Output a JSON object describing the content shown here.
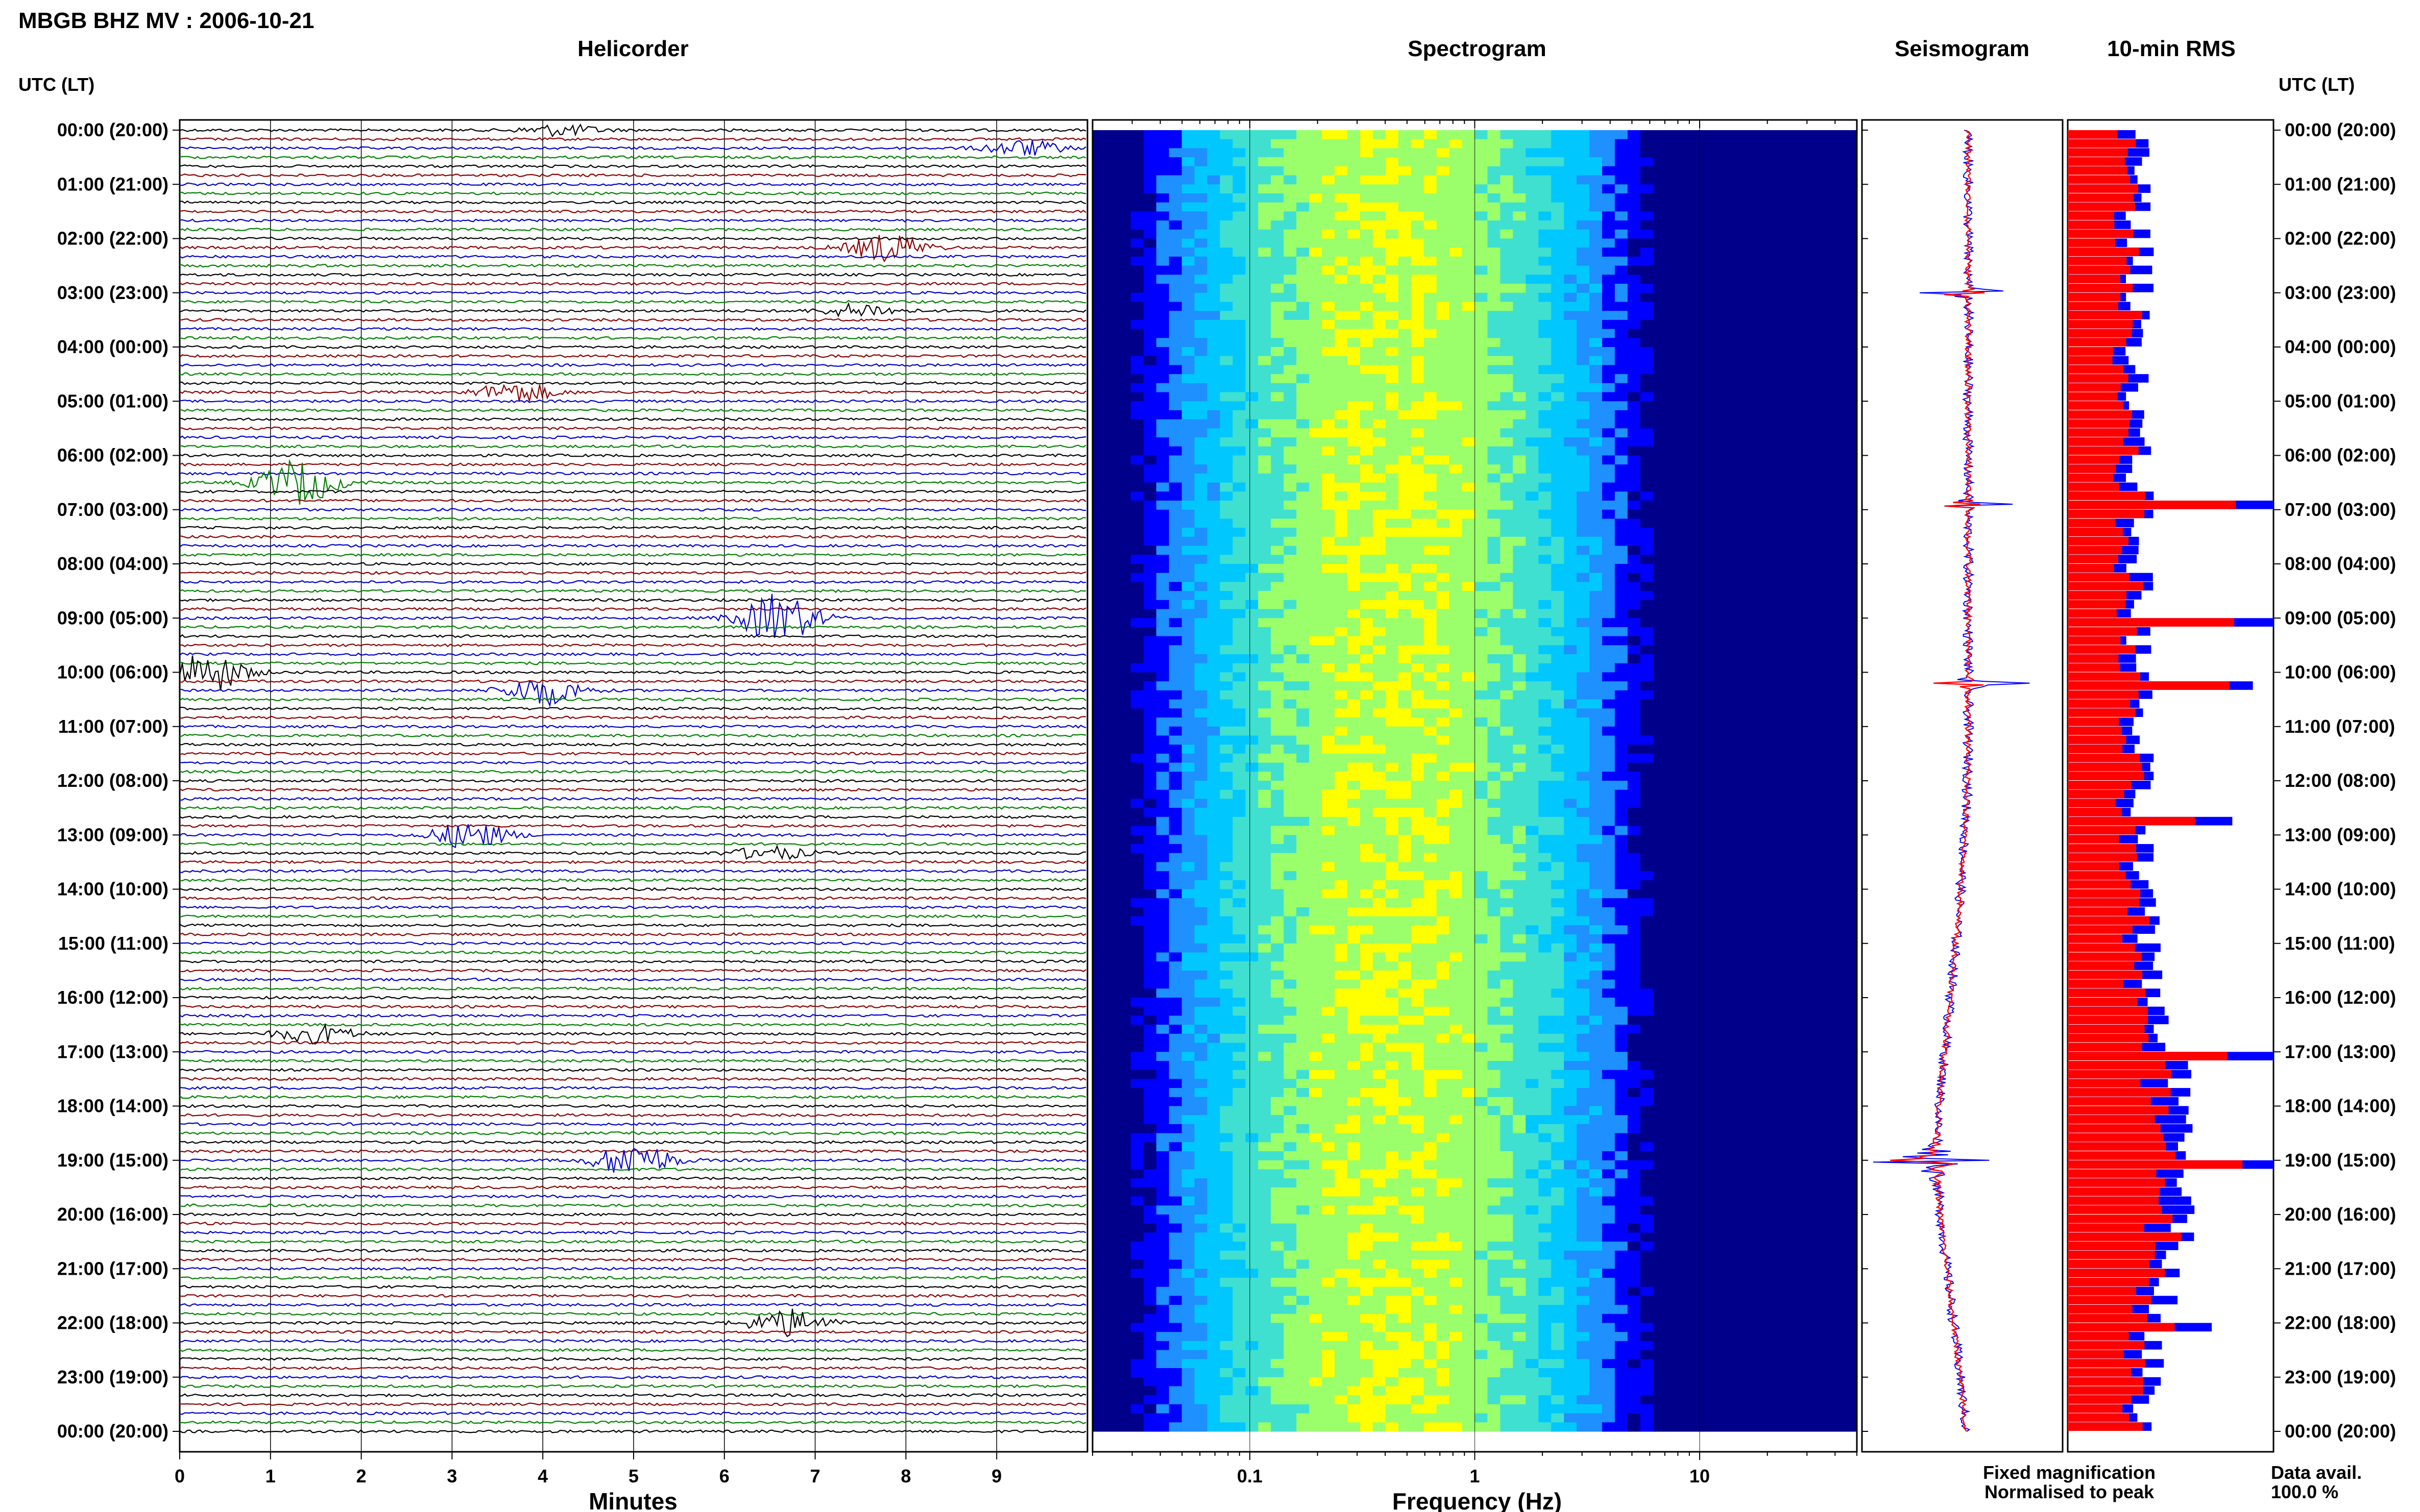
{
  "figure": {
    "title": "MBGB BHZ MV : 2006-10-21",
    "panel_titles": {
      "helicorder": "Helicorder",
      "spectrogram": "Spectrogram",
      "seismogram": "Seismogram",
      "rms": "10-min RMS"
    },
    "time_axis_label": "UTC (LT)",
    "time_axis_label_right": "UTC (LT)",
    "legend": {
      "fixed": "Fixed magnification",
      "normalised": "Normalised to peak",
      "fixed_color": "#0000ff",
      "normalised_color": "#ff0000"
    },
    "data_avail_label": "Data avail.",
    "data_avail_value": "100.0 %"
  },
  "chart_data": [
    {
      "type": "line",
      "panel": "helicorder",
      "xlabel": "Minutes",
      "ylabel": "UTC (LT)",
      "xlim": [
        0,
        10
      ],
      "x_ticks": [
        "0",
        "1",
        "2",
        "3",
        "4",
        "5",
        "6",
        "7",
        "8",
        "9"
      ],
      "time_ticks": [
        "00:00 (20:00)",
        "01:00 (21:00)",
        "02:00 (22:00)",
        "03:00 (23:00)",
        "04:00 (00:00)",
        "05:00 (01:00)",
        "06:00 (02:00)",
        "07:00 (03:00)",
        "08:00 (04:00)",
        "09:00 (05:00)",
        "10:00 (06:00)",
        "11:00 (07:00)",
        "12:00 (08:00)",
        "13:00 (09:00)",
        "14:00 (10:00)",
        "15:00 (11:00)",
        "16:00 (12:00)",
        "17:00 (13:00)",
        "18:00 (14:00)",
        "19:00 (15:00)",
        "20:00 (16:00)",
        "21:00 (17:00)",
        "22:00 (18:00)",
        "23:00 (19:00)",
        "00:00 (20:00)"
      ],
      "trace_colors": [
        "#000000",
        "#8b0000",
        "#0000cd",
        "#008000"
      ],
      "events": [
        {
          "utc_hours": 0.0,
          "minute": 4.2,
          "amplitude": 0.5
        },
        {
          "utc_hours": 0.33,
          "minute": 9.3,
          "amplitude": 0.7
        },
        {
          "utc_hours": 2.17,
          "minute": 7.8,
          "amplitude": 1.2
        },
        {
          "utc_hours": 3.33,
          "minute": 7.5,
          "amplitude": 0.6
        },
        {
          "utc_hours": 4.83,
          "minute": 3.7,
          "amplitude": 0.9
        },
        {
          "utc_hours": 6.5,
          "minute": 1.3,
          "amplitude": 2.0
        },
        {
          "utc_hours": 9.0,
          "minute": 6.6,
          "amplitude": 2.2
        },
        {
          "utc_hours": 10.0,
          "minute": 0.3,
          "amplitude": 1.8
        },
        {
          "utc_hours": 10.33,
          "minute": 4.0,
          "amplitude": 1.3
        },
        {
          "utc_hours": 13.0,
          "minute": 3.2,
          "amplitude": 1.2
        },
        {
          "utc_hours": 13.33,
          "minute": 6.5,
          "amplitude": 0.6
        },
        {
          "utc_hours": 16.67,
          "minute": 1.5,
          "amplitude": 0.8
        },
        {
          "utc_hours": 19.0,
          "minute": 5.0,
          "amplitude": 1.6
        },
        {
          "utc_hours": 22.0,
          "minute": 6.7,
          "amplitude": 1.2
        }
      ]
    },
    {
      "type": "heatmap",
      "panel": "spectrogram",
      "xlabel": "Frequency (Hz)",
      "x_scale": "log",
      "xlim": [
        0.02,
        50
      ],
      "x_ticks": [
        {
          "value": 0.1,
          "label": "0.1"
        },
        {
          "value": 1,
          "label": "1"
        },
        {
          "value": 10,
          "label": "10"
        }
      ],
      "peak_frequency_hz": 0.4,
      "colormap": [
        "#00008b",
        "#0000ff",
        "#1e90ff",
        "#00c8ff",
        "#40e0d0",
        "#9aff6a",
        "#ffff00"
      ]
    },
    {
      "type": "line",
      "panel": "seismogram",
      "series": [
        {
          "name": "Fixed magnification",
          "color": "#0000ff"
        },
        {
          "name": "Normalised to peak",
          "color": "#ff0000"
        }
      ],
      "peaks_utc_hours": [
        3.0,
        6.9,
        10.2,
        19.0
      ]
    },
    {
      "type": "bar",
      "panel": "rms",
      "orientation": "horizontal",
      "interval_minutes": 10,
      "series": [
        {
          "name": "Fixed magnification",
          "color": "#0000ff"
        },
        {
          "name": "Normalised to peak",
          "color": "#ff0000"
        }
      ],
      "peaks": [
        {
          "utc_hours": 6.83,
          "value": 1.0
        },
        {
          "utc_hours": 9.0,
          "value": 1.0
        },
        {
          "utc_hours": 10.17,
          "value": 0.9
        },
        {
          "utc_hours": 12.7,
          "value": 0.8
        },
        {
          "utc_hours": 17.0,
          "value": 1.0
        },
        {
          "utc_hours": 19.0,
          "value": 1.0
        },
        {
          "utc_hours": 22.0,
          "value": 0.7
        }
      ]
    }
  ]
}
